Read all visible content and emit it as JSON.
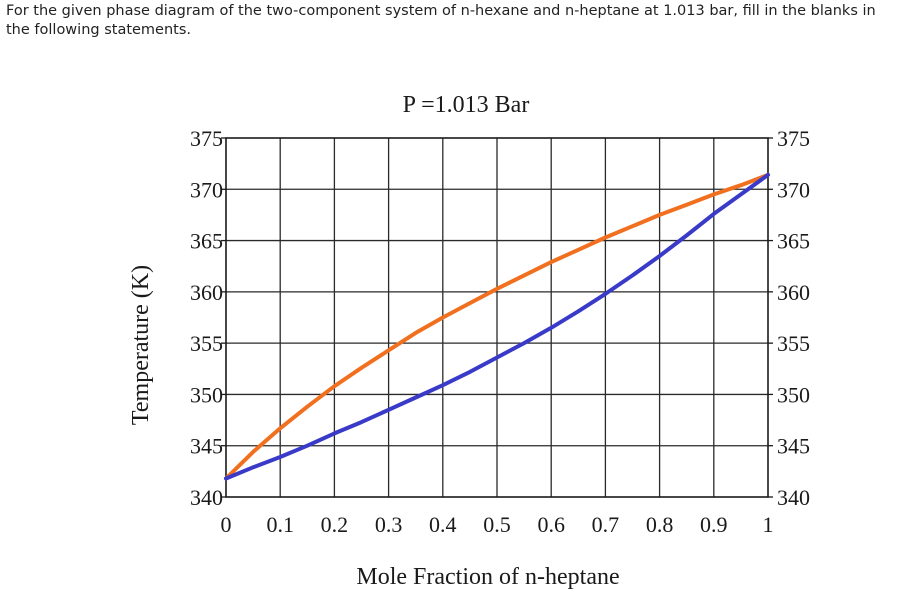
{
  "question": "For the given phase diagram of the two-component system of n-hexane and n-heptane at 1.013 bar, fill in the blanks in the following statements.",
  "chart_data": {
    "type": "line",
    "title": "P =1.013 Bar",
    "xlabel": "Mole Fraction of n-heptane",
    "ylabel": "Temperature (K)",
    "xlim": [
      0,
      1
    ],
    "ylim": [
      340,
      375
    ],
    "x_ticks": [
      "0",
      "0.1",
      "0.2",
      "0.3",
      "0.4",
      "0.5",
      "0.6",
      "0.7",
      "0.8",
      "0.9",
      "1"
    ],
    "y_ticks": [
      "340",
      "345",
      "350",
      "355",
      "360",
      "365",
      "370",
      "375"
    ],
    "grid": true,
    "series": [
      {
        "color": "#f07020",
        "x": [
          0,
          0.05,
          0.1,
          0.15,
          0.2,
          0.25,
          0.3,
          0.35,
          0.4,
          0.45,
          0.5,
          0.55,
          0.6,
          0.65,
          0.7,
          0.75,
          0.8,
          0.85,
          0.9,
          0.95,
          1
        ],
        "y": [
          341.8,
          344.4,
          346.7,
          348.8,
          350.8,
          352.6,
          354.3,
          356.0,
          357.5,
          358.9,
          360.3,
          361.6,
          362.9,
          364.1,
          365.3,
          366.4,
          367.5,
          368.5,
          369.5,
          370.4,
          371.4
        ]
      },
      {
        "color": "#3a3ac8",
        "x": [
          0,
          0.05,
          0.1,
          0.15,
          0.2,
          0.25,
          0.3,
          0.35,
          0.4,
          0.45,
          0.5,
          0.55,
          0.6,
          0.65,
          0.7,
          0.75,
          0.8,
          0.85,
          0.9,
          0.95,
          1
        ],
        "y": [
          341.8,
          342.9,
          343.9,
          345.0,
          346.2,
          347.3,
          348.5,
          349.7,
          350.9,
          352.2,
          353.6,
          355.0,
          356.5,
          358.1,
          359.8,
          361.6,
          363.5,
          365.5,
          367.6,
          369.5,
          371.4
        ]
      }
    ]
  }
}
